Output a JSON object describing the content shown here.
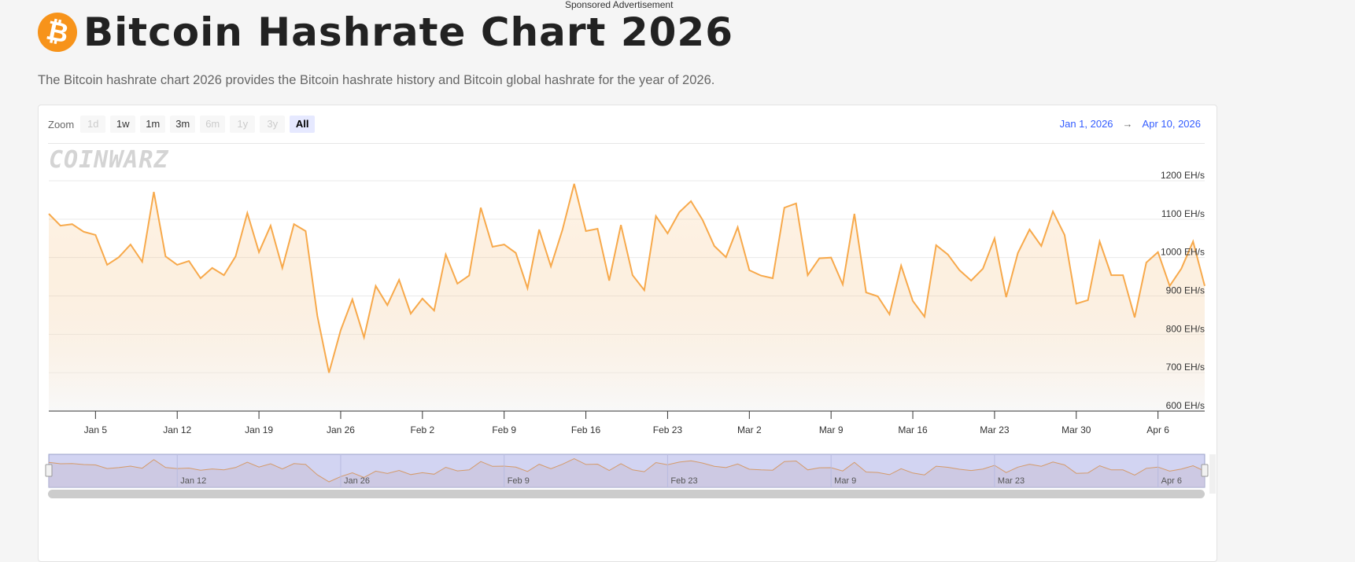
{
  "sponsored_text": "Sponsored Advertisement",
  "header": {
    "icon": "bitcoin-icon",
    "icon_color": "#f7931a",
    "title": "Bitcoin Hashrate Chart 2026",
    "subtitle": "The Bitcoin hashrate chart 2026 provides the Bitcoin hashrate history and Bitcoin global hashrate for the year of 2026."
  },
  "toolbar": {
    "zoom_label": "Zoom",
    "zoom_buttons": [
      {
        "label": "1d",
        "state": "disabled"
      },
      {
        "label": "1w",
        "state": "enabled"
      },
      {
        "label": "1m",
        "state": "enabled"
      },
      {
        "label": "3m",
        "state": "enabled"
      },
      {
        "label": "6m",
        "state": "disabled"
      },
      {
        "label": "1y",
        "state": "disabled"
      },
      {
        "label": "3y",
        "state": "disabled"
      },
      {
        "label": "All",
        "state": "active"
      }
    ],
    "range_from": "Jan 1, 2026",
    "range_arrow": "→",
    "range_to": "Apr 10, 2026"
  },
  "watermark": "COINWARZ",
  "chart_data": {
    "type": "area",
    "title": "",
    "xlabel": "",
    "ylabel": "",
    "line_color": "#f7a94b",
    "ylim": [
      600,
      1200
    ],
    "y_ticks": [
      "600 EH/s",
      "700 EH/s",
      "800 EH/s",
      "900 EH/s",
      "1000 EH/s",
      "1100 EH/s",
      "1200 EH/s"
    ],
    "y_tick_values": [
      600,
      700,
      800,
      900,
      1000,
      1100,
      1200
    ],
    "x_ticks": [
      "Jan 5",
      "Jan 12",
      "Jan 19",
      "Jan 26",
      "Feb 2",
      "Feb 9",
      "Feb 16",
      "Feb 23",
      "Mar 2",
      "Mar 9",
      "Mar 16",
      "Mar 23",
      "Mar 30",
      "Apr 6"
    ],
    "navigator_ticks": [
      "Jan 12",
      "Jan 26",
      "Feb 9",
      "Feb 23",
      "Mar 9",
      "Mar 23",
      "Apr 6"
    ],
    "grid": true,
    "x": [
      "Jan 1",
      "Jan 2",
      "Jan 3",
      "Jan 4",
      "Jan 5",
      "Jan 6",
      "Jan 7",
      "Jan 8",
      "Jan 9",
      "Jan 10",
      "Jan 11",
      "Jan 12",
      "Jan 13",
      "Jan 14",
      "Jan 15",
      "Jan 16",
      "Jan 17",
      "Jan 18",
      "Jan 19",
      "Jan 20",
      "Jan 21",
      "Jan 22",
      "Jan 23",
      "Jan 24",
      "Jan 25",
      "Jan 26",
      "Jan 27",
      "Jan 28",
      "Jan 29",
      "Jan 30",
      "Jan 31",
      "Feb 1",
      "Feb 2",
      "Feb 3",
      "Feb 4",
      "Feb 5",
      "Feb 6",
      "Feb 7",
      "Feb 8",
      "Feb 9",
      "Feb 10",
      "Feb 11",
      "Feb 12",
      "Feb 13",
      "Feb 14",
      "Feb 15",
      "Feb 16",
      "Feb 17",
      "Feb 18",
      "Feb 19",
      "Feb 20",
      "Feb 21",
      "Feb 22",
      "Feb 23",
      "Feb 24",
      "Feb 25",
      "Feb 26",
      "Feb 27",
      "Feb 28",
      "Mar 1",
      "Mar 2",
      "Mar 3",
      "Mar 4",
      "Mar 5",
      "Mar 6",
      "Mar 7",
      "Mar 8",
      "Mar 9",
      "Mar 10",
      "Mar 11",
      "Mar 12",
      "Mar 13",
      "Mar 14",
      "Mar 15",
      "Mar 16",
      "Mar 17",
      "Mar 18",
      "Mar 19",
      "Mar 20",
      "Mar 21",
      "Mar 22",
      "Mar 23",
      "Mar 24",
      "Mar 25",
      "Mar 26",
      "Mar 27",
      "Mar 28",
      "Mar 29",
      "Mar 30",
      "Mar 31",
      "Apr 1",
      "Apr 2",
      "Apr 3",
      "Apr 4",
      "Apr 5",
      "Apr 6",
      "Apr 7",
      "Apr 8",
      "Apr 9",
      "Apr 10"
    ],
    "values": [
      1114,
      1083,
      1087,
      1067,
      1059,
      981,
      1001,
      1034,
      989,
      1171,
      1003,
      981,
      991,
      946,
      973,
      954,
      1003,
      1116,
      1014,
      1083,
      973,
      1087,
      1069,
      848,
      700,
      811,
      891,
      792,
      926,
      876,
      942,
      854,
      893,
      862,
      1008,
      932,
      953,
      1130,
      1028,
      1034,
      1012,
      920,
      1073,
      977,
      1073,
      1192,
      1069,
      1075,
      940,
      1085,
      954,
      915,
      1108,
      1063,
      1118,
      1147,
      1098,
      1030,
      1001,
      1079,
      967,
      953,
      946,
      1130,
      1141,
      954,
      998,
      1000,
      930,
      1114,
      909,
      899,
      852,
      979,
      887,
      846,
      1032,
      1008,
      967,
      940,
      971,
      1050,
      897,
      1012,
      1073,
      1030,
      1120,
      1059,
      880,
      889,
      1042,
      954,
      954,
      844,
      987,
      1014,
      926,
      971,
      1042,
      926
    ]
  }
}
